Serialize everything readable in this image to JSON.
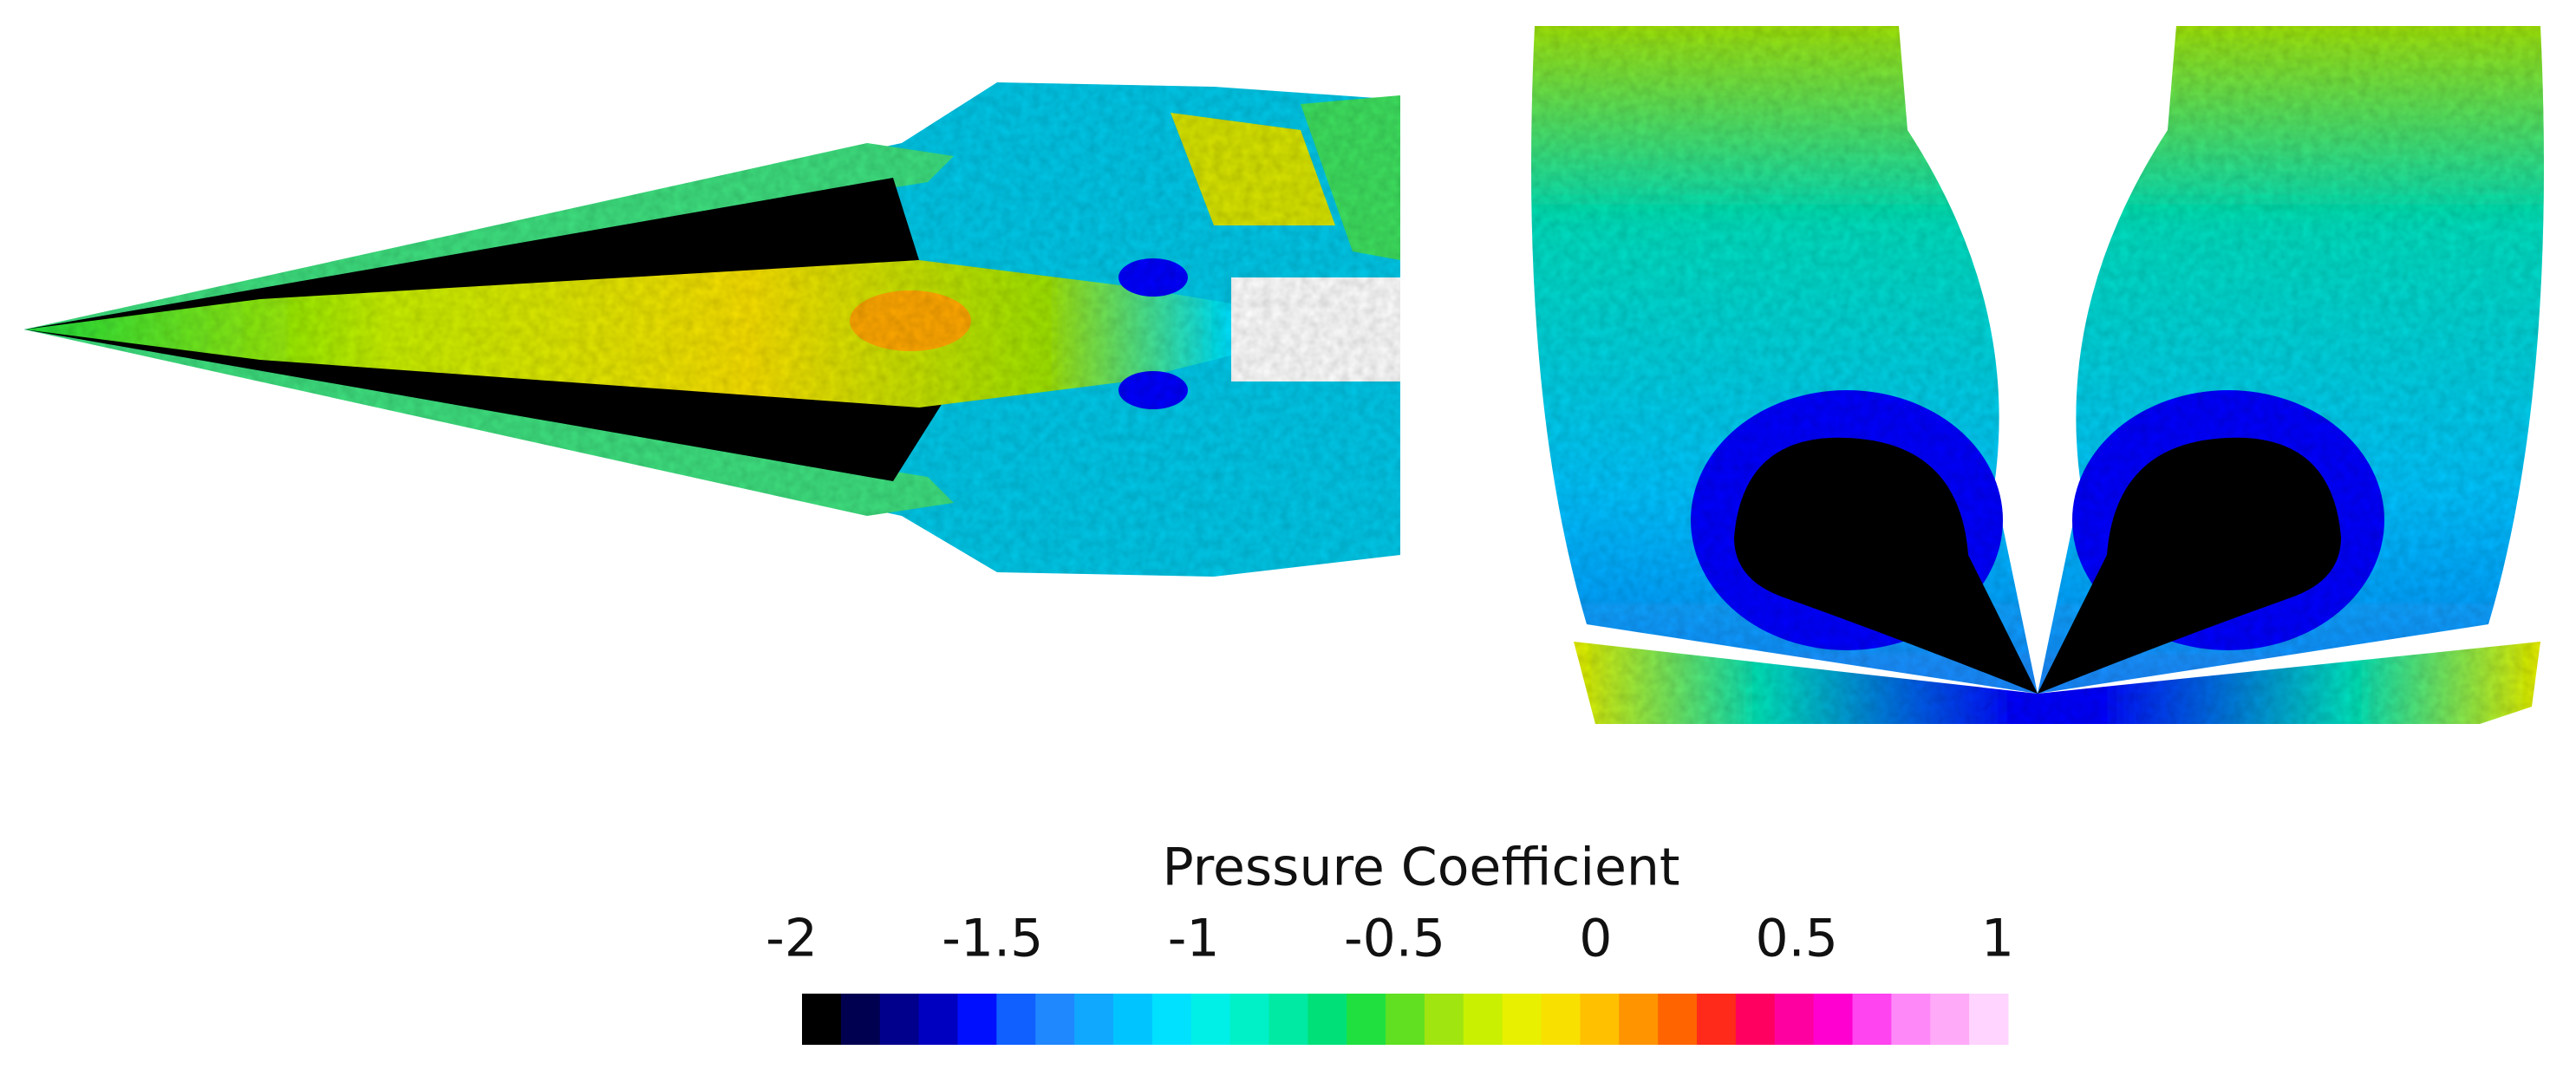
{
  "colorbar": {
    "title": "Pressure Coefficient",
    "lim": [
      -2,
      1
    ],
    "ticks": [
      -2,
      -1.5,
      -1,
      -0.5,
      0,
      0.5,
      1
    ],
    "colors": [
      "#000000",
      "#000050",
      "#00008c",
      "#0000c0",
      "#0010ff",
      "#1060ff",
      "#2088ff",
      "#10a8ff",
      "#00c4ff",
      "#00e0ff",
      "#00f0e8",
      "#00f0c8",
      "#00eaa4",
      "#00e078",
      "#20e040",
      "#60e020",
      "#a0e410",
      "#c8f000",
      "#e8f000",
      "#f8e000",
      "#ffc000",
      "#ff9400",
      "#ff6400",
      "#ff2a1a",
      "#ff0060",
      "#ff00a0",
      "#ff00d0",
      "#ff44f0",
      "#ff88f8",
      "#ffaaf8",
      "#ffd4ff"
    ]
  }
}
